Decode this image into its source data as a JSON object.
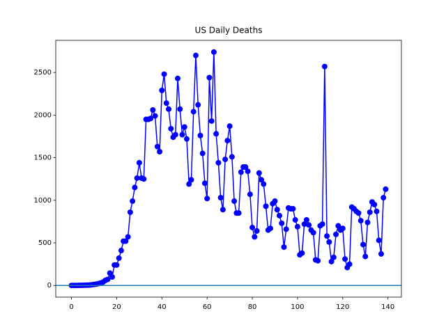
{
  "chart_data": {
    "type": "line",
    "title": "US Daily Deaths",
    "x": [
      0,
      1,
      2,
      3,
      4,
      5,
      6,
      7,
      8,
      9,
      10,
      11,
      12,
      13,
      14,
      15,
      16,
      17,
      18,
      19,
      20,
      21,
      22,
      23,
      24,
      25,
      26,
      27,
      28,
      29,
      30,
      31,
      32,
      33,
      34,
      35,
      36,
      37,
      38,
      39,
      40,
      41,
      42,
      43,
      44,
      45,
      46,
      47,
      48,
      49,
      50,
      51,
      52,
      53,
      54,
      55,
      56,
      57,
      58,
      59,
      60,
      61,
      62,
      63,
      64,
      65,
      66,
      67,
      68,
      69,
      70,
      71,
      72,
      73,
      74,
      75,
      76,
      77,
      78,
      79,
      80,
      81,
      82,
      83,
      84,
      85,
      86,
      87,
      88,
      89,
      90,
      91,
      92,
      93,
      94,
      95,
      96,
      97,
      98,
      99,
      100,
      101,
      102,
      103,
      104,
      105,
      106,
      107,
      108,
      109,
      110,
      111,
      112,
      113,
      114,
      115,
      116,
      117,
      118,
      119,
      120,
      121,
      122,
      123,
      124,
      125,
      126,
      127,
      128,
      129,
      130,
      131,
      132,
      133,
      134,
      135,
      136,
      137,
      138,
      139
    ],
    "series": [
      {
        "color": "#0000ff",
        "marker": "circle",
        "values": [
          0,
          0,
          0,
          1,
          1,
          2,
          3,
          4,
          5,
          8,
          12,
          16,
          22,
          30,
          40,
          60,
          70,
          145,
          100,
          240,
          240,
          320,
          410,
          520,
          520,
          570,
          860,
          990,
          1150,
          1260,
          1440,
          1260,
          1250,
          1950,
          1950,
          1960,
          2060,
          1990,
          1630,
          1570,
          2290,
          2480,
          2140,
          2070,
          1840,
          1740,
          1770,
          2430,
          2070,
          1770,
          1860,
          1720,
          1190,
          1240,
          2040,
          2700,
          2120,
          1760,
          1550,
          1200,
          1020,
          2440,
          1930,
          2740,
          1780,
          1440,
          1030,
          890,
          1480,
          1700,
          1870,
          1510,
          990,
          850,
          850,
          1330,
          1390,
          1390,
          1340,
          1070,
          680,
          570,
          640,
          1320,
          1240,
          1190,
          930,
          650,
          670,
          960,
          990,
          890,
          820,
          730,
          450,
          660,
          910,
          900,
          900,
          770,
          690,
          360,
          380,
          720,
          770,
          710,
          650,
          620,
          300,
          290,
          700,
          720,
          2570,
          580,
          510,
          280,
          330,
          600,
          700,
          650,
          670,
          310,
          210,
          250,
          920,
          900,
          870,
          850,
          760,
          480,
          340,
          740,
          860,
          980,
          950,
          870,
          530,
          370,
          1030,
          1130
        ]
      }
    ],
    "reference_line": {
      "value": 0,
      "color": "#1f77b4"
    },
    "xlim": [
      -6.95,
      145.95
    ],
    "ylim": [
      -137,
      2877
    ],
    "xticks": [
      0,
      20,
      40,
      60,
      80,
      100,
      120,
      140
    ],
    "yticks": [
      0,
      500,
      1000,
      1500,
      2000,
      2500
    ]
  }
}
